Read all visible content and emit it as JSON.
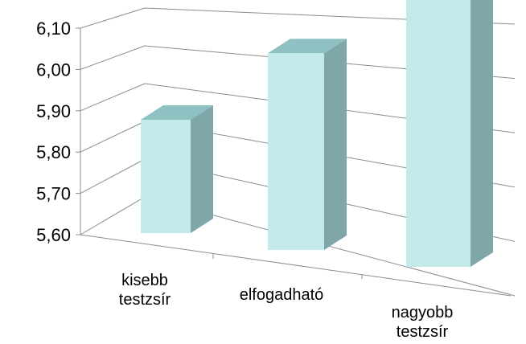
{
  "chart_data": {
    "type": "bar",
    "categories": [
      "kisebb testzsír",
      "elfogadható",
      "nagyobb testzsír"
    ],
    "category_lines": [
      [
        "kisebb",
        "testzsír"
      ],
      [
        "elfogadható"
      ],
      [
        "nagyobb",
        "testzsír"
      ]
    ],
    "values": [
      5.75,
      5.84,
      5.97
    ],
    "y_ticks": [
      "6,10",
      "6,00",
      "5,90",
      "5,80",
      "5,70",
      "5,60"
    ],
    "ylim": [
      5.6,
      6.1
    ],
    "grid": true,
    "legend": "none",
    "title": "",
    "xlabel": "",
    "ylabel": ""
  },
  "colors": {
    "bar_front": "#c2eaeb",
    "bar_top": "#8fc1c3",
    "bar_side": "#7fa6a8",
    "gridline": "#8c8c8c"
  }
}
